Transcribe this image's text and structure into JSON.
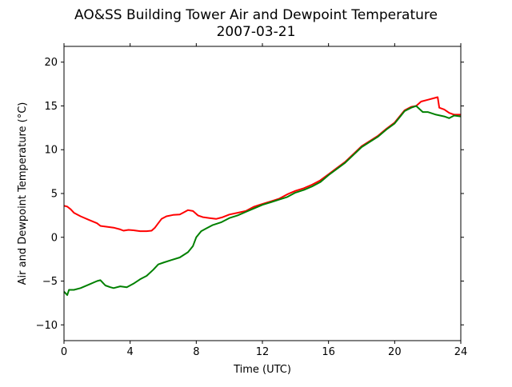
{
  "chart_data": {
    "type": "line",
    "title_line1": "AO&SS Building Tower Air and Dewpoint Temperature",
    "title_line2": "2007-03-21",
    "xlabel": "Time (UTC)",
    "ylabel": "Air and Dewpoint Temperature (°C)",
    "xlim": [
      0,
      24
    ],
    "ylim": [
      -11.8,
      21.8
    ],
    "x_ticks": [
      0,
      4,
      8,
      12,
      16,
      20,
      24
    ],
    "y_ticks": [
      -10,
      -5,
      0,
      5,
      10,
      15,
      20
    ],
    "grid": false,
    "legend": "none",
    "series": [
      {
        "color": "#ff0000",
        "points": [
          [
            0,
            3.6
          ],
          [
            0.2,
            3.5
          ],
          [
            0.4,
            3.2
          ],
          [
            0.6,
            2.8
          ],
          [
            1.0,
            2.4
          ],
          [
            1.5,
            2.0
          ],
          [
            2.0,
            1.6
          ],
          [
            2.2,
            1.3
          ],
          [
            2.6,
            1.2
          ],
          [
            3.0,
            1.1
          ],
          [
            3.4,
            0.9
          ],
          [
            3.6,
            0.75
          ],
          [
            3.9,
            0.85
          ],
          [
            4.2,
            0.8
          ],
          [
            4.6,
            0.7
          ],
          [
            5.0,
            0.7
          ],
          [
            5.3,
            0.75
          ],
          [
            5.5,
            1.1
          ],
          [
            5.7,
            1.6
          ],
          [
            5.9,
            2.1
          ],
          [
            6.2,
            2.4
          ],
          [
            6.6,
            2.55
          ],
          [
            7.0,
            2.6
          ],
          [
            7.2,
            2.8
          ],
          [
            7.5,
            3.1
          ],
          [
            7.8,
            3.0
          ],
          [
            8.1,
            2.5
          ],
          [
            8.4,
            2.3
          ],
          [
            8.8,
            2.2
          ],
          [
            9.2,
            2.1
          ],
          [
            9.6,
            2.3
          ],
          [
            10.0,
            2.6
          ],
          [
            10.5,
            2.8
          ],
          [
            11.0,
            3.0
          ],
          [
            11.5,
            3.5
          ],
          [
            12.0,
            3.8
          ],
          [
            12.5,
            4.1
          ],
          [
            13.0,
            4.4
          ],
          [
            13.5,
            4.9
          ],
          [
            14.0,
            5.3
          ],
          [
            14.5,
            5.6
          ],
          [
            15.0,
            6.0
          ],
          [
            15.5,
            6.5
          ],
          [
            16.0,
            7.2
          ],
          [
            16.5,
            7.9
          ],
          [
            17.0,
            8.6
          ],
          [
            17.5,
            9.5
          ],
          [
            18.0,
            10.4
          ],
          [
            18.5,
            11.0
          ],
          [
            19.0,
            11.6
          ],
          [
            19.5,
            12.4
          ],
          [
            20.0,
            13.1
          ],
          [
            20.3,
            13.8
          ],
          [
            20.6,
            14.5
          ],
          [
            21.0,
            14.9
          ],
          [
            21.3,
            15.0
          ],
          [
            21.6,
            15.5
          ],
          [
            22.0,
            15.7
          ],
          [
            22.4,
            15.9
          ],
          [
            22.6,
            16.0
          ],
          [
            22.7,
            14.8
          ],
          [
            23.0,
            14.6
          ],
          [
            23.3,
            14.2
          ],
          [
            23.6,
            14.0
          ],
          [
            24.0,
            14.0
          ]
        ]
      },
      {
        "color": "#008000",
        "points": [
          [
            0,
            -6.2
          ],
          [
            0.2,
            -6.6
          ],
          [
            0.3,
            -6.0
          ],
          [
            0.6,
            -6.0
          ],
          [
            1.0,
            -5.8
          ],
          [
            1.5,
            -5.4
          ],
          [
            2.0,
            -5.0
          ],
          [
            2.2,
            -4.9
          ],
          [
            2.5,
            -5.5
          ],
          [
            2.8,
            -5.7
          ],
          [
            3.0,
            -5.8
          ],
          [
            3.4,
            -5.6
          ],
          [
            3.8,
            -5.7
          ],
          [
            4.2,
            -5.3
          ],
          [
            4.6,
            -4.8
          ],
          [
            5.0,
            -4.4
          ],
          [
            5.4,
            -3.7
          ],
          [
            5.7,
            -3.1
          ],
          [
            6.0,
            -2.9
          ],
          [
            6.5,
            -2.6
          ],
          [
            7.0,
            -2.3
          ],
          [
            7.5,
            -1.7
          ],
          [
            7.8,
            -1.0
          ],
          [
            8.0,
            0.0
          ],
          [
            8.3,
            0.7
          ],
          [
            8.6,
            1.0
          ],
          [
            9.0,
            1.4
          ],
          [
            9.5,
            1.7
          ],
          [
            10.0,
            2.2
          ],
          [
            10.5,
            2.5
          ],
          [
            11.0,
            2.9
          ],
          [
            11.5,
            3.3
          ],
          [
            12.0,
            3.7
          ],
          [
            12.5,
            4.0
          ],
          [
            13.0,
            4.3
          ],
          [
            13.5,
            4.6
          ],
          [
            14.0,
            5.1
          ],
          [
            14.5,
            5.4
          ],
          [
            15.0,
            5.8
          ],
          [
            15.5,
            6.3
          ],
          [
            16.0,
            7.1
          ],
          [
            16.5,
            7.8
          ],
          [
            17.0,
            8.5
          ],
          [
            17.5,
            9.4
          ],
          [
            18.0,
            10.3
          ],
          [
            18.5,
            10.9
          ],
          [
            19.0,
            11.5
          ],
          [
            19.5,
            12.3
          ],
          [
            20.0,
            13.0
          ],
          [
            20.3,
            13.7
          ],
          [
            20.6,
            14.4
          ],
          [
            21.0,
            14.8
          ],
          [
            21.3,
            15.0
          ],
          [
            21.7,
            14.3
          ],
          [
            22.0,
            14.3
          ],
          [
            22.5,
            14.0
          ],
          [
            23.0,
            13.8
          ],
          [
            23.3,
            13.6
          ],
          [
            23.6,
            13.9
          ],
          [
            24.0,
            13.8
          ]
        ]
      }
    ]
  }
}
